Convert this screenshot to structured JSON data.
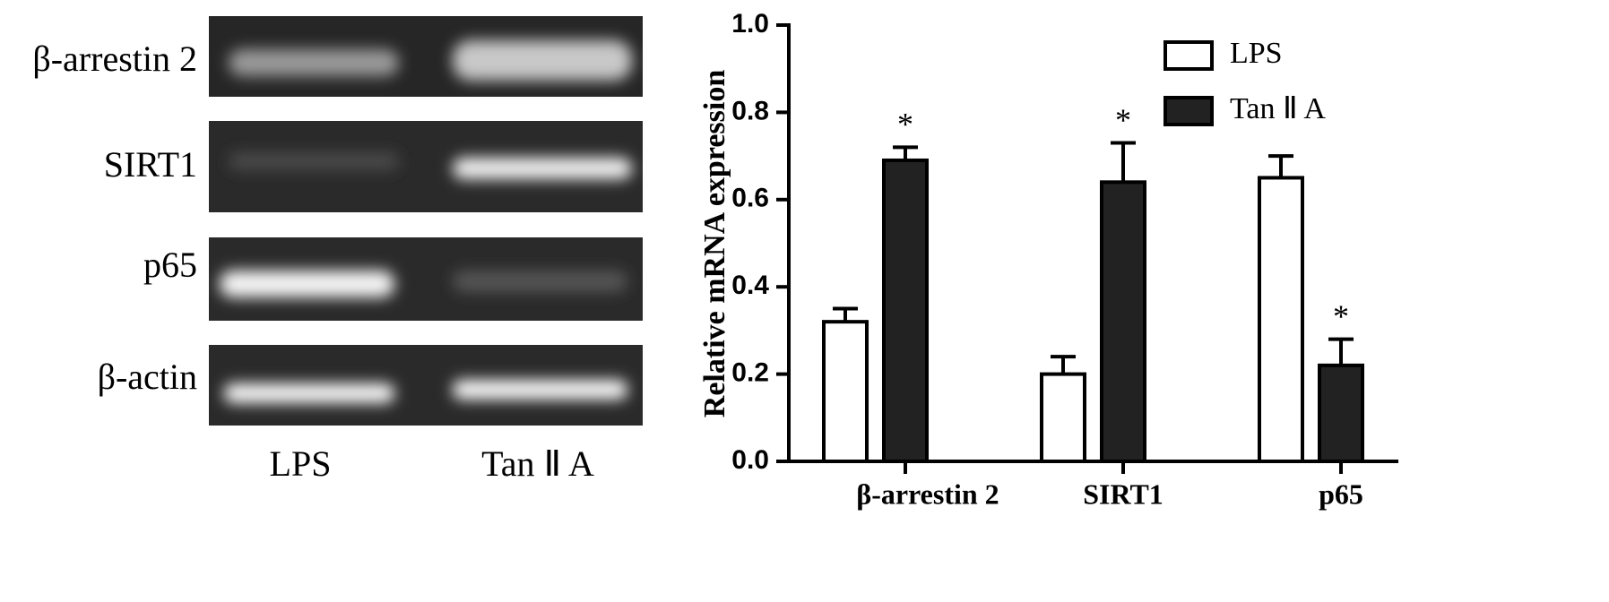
{
  "gel": {
    "rows": [
      "β-arrestin 2",
      "SIRT1",
      "p65",
      "β-actin"
    ],
    "lanes": [
      "LPS",
      "Tan Ⅱ A"
    ]
  },
  "chart_data": {
    "type": "bar",
    "ylabel": "Relative mRNA expression",
    "categories": [
      "β-arrestin 2",
      "SIRT1",
      "p65"
    ],
    "series": [
      {
        "name": "LPS",
        "color": "#ffffff",
        "values": [
          0.32,
          0.2,
          0.65
        ],
        "errors": [
          0.03,
          0.04,
          0.05
        ]
      },
      {
        "name": "Tan Ⅱ A",
        "color": "#222222",
        "values": [
          0.69,
          0.64,
          0.22
        ],
        "errors": [
          0.03,
          0.09,
          0.06
        ]
      }
    ],
    "annotations": [
      {
        "text": "*",
        "series": "Tan Ⅱ A",
        "category": "β-arrestin 2"
      },
      {
        "text": "*",
        "series": "Tan Ⅱ A",
        "category": "SIRT1"
      },
      {
        "text": "*",
        "series": "Tan Ⅱ A",
        "category": "p65"
      }
    ],
    "ylim": [
      0,
      1
    ],
    "yticks": [
      {
        "value": 0,
        "label": "0.0"
      },
      0.2,
      0.4,
      0.6,
      0.8,
      {
        "value": 1,
        "label": "1.0"
      }
    ],
    "legend": "upper right"
  }
}
